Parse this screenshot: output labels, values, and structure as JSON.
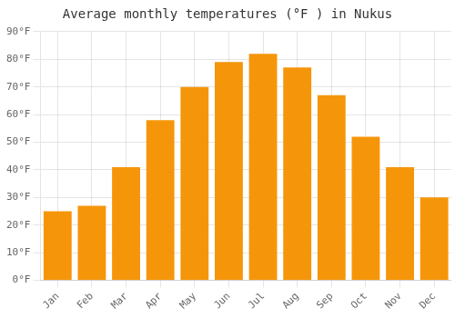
{
  "chart_data": {
    "type": "bar",
    "title": "Average monthly temperatures (°F ) in Nukus",
    "categories": [
      "Jan",
      "Feb",
      "Mar",
      "Apr",
      "May",
      "Jun",
      "Jul",
      "Aug",
      "Sep",
      "Oct",
      "Nov",
      "Dec"
    ],
    "values": [
      25,
      27,
      41,
      58,
      70,
      79,
      82,
      77,
      67,
      52,
      41,
      30
    ],
    "color": "#F5960A",
    "ylim": [
      0,
      90
    ],
    "yticks": [
      {
        "value": 0,
        "label": "0°F"
      },
      {
        "value": 10,
        "label": "10°F"
      },
      {
        "value": 20,
        "label": "20°F"
      },
      {
        "value": 30,
        "label": "30°F"
      },
      {
        "value": 40,
        "label": "40°F"
      },
      {
        "value": 50,
        "label": "50°F"
      },
      {
        "value": 60,
        "label": "60°F"
      },
      {
        "value": 70,
        "label": "70°F"
      },
      {
        "value": 80,
        "label": "80°F"
      },
      {
        "value": 90,
        "label": "90°F"
      }
    ],
    "grid": true
  }
}
